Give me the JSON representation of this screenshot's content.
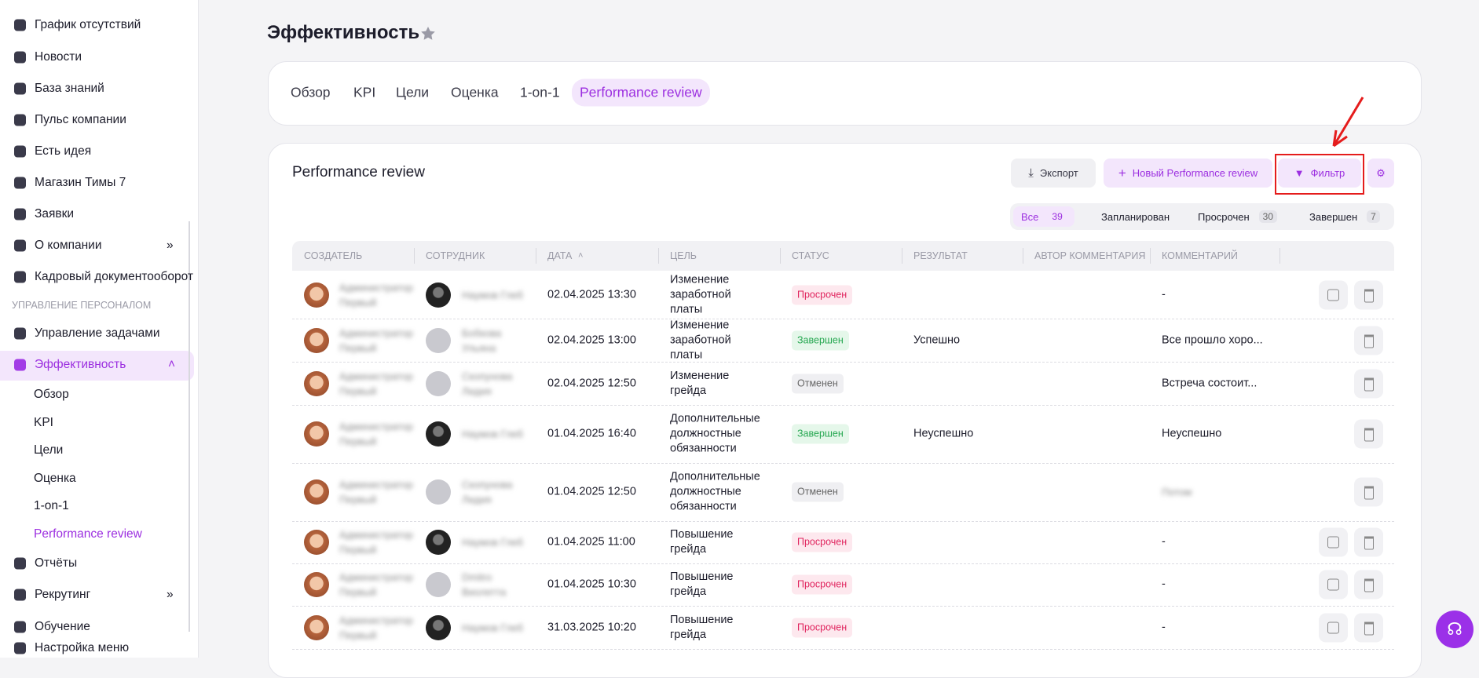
{
  "sidebar": {
    "items": [
      {
        "label": "График отсутствий"
      },
      {
        "label": "Новости"
      },
      {
        "label": "База знаний"
      },
      {
        "label": "Пульс компании"
      },
      {
        "label": "Есть идея"
      },
      {
        "label": "Магазин Тимы 7"
      },
      {
        "label": "Заявки"
      },
      {
        "label": "О компании",
        "expandable": true
      },
      {
        "label": "Кадровый документооборот"
      }
    ],
    "section": "УПРАВЛЕНИЕ ПЕРСОНАЛОМ",
    "items2": [
      {
        "label": "Управление задачами"
      },
      {
        "label": "Эффективность",
        "active": true,
        "expanded": true
      }
    ],
    "sub": [
      {
        "label": "Обзор"
      },
      {
        "label": "KPI"
      },
      {
        "label": "Цели"
      },
      {
        "label": "Оценка"
      },
      {
        "label": "1-on-1"
      },
      {
        "label": "Performance review",
        "active": true
      }
    ],
    "items3": [
      {
        "label": "Отчёты"
      },
      {
        "label": "Рекрутинг",
        "expandable": true
      },
      {
        "label": "Обучение"
      },
      {
        "label": "Настройка меню"
      }
    ]
  },
  "header": {
    "title": "Эффективность"
  },
  "tabs": [
    {
      "label": "Обзор"
    },
    {
      "label": "KPI"
    },
    {
      "label": "Цели"
    },
    {
      "label": "Оценка"
    },
    {
      "label": "1-on-1"
    },
    {
      "label": "Performance review",
      "active": true
    }
  ],
  "panel": {
    "title": "Performance review",
    "buttons": {
      "export": "Экспорт",
      "new": "Новый Performance review",
      "filter": "Фильтр"
    },
    "filters": [
      {
        "label": "Все",
        "count": 39,
        "active": true
      },
      {
        "label": "Запланирован"
      },
      {
        "label": "Просрочен",
        "count": 30
      },
      {
        "label": "Завершен",
        "count": 7
      }
    ]
  },
  "table": {
    "columns": [
      "СОЗДАТЕЛЬ",
      "СОТРУДНИК",
      "ДАТА",
      "ЦЕЛЬ",
      "СТАТУС",
      "РЕЗУЛЬТАТ",
      "АВТОР КОММЕНТАРИЯ",
      "КОММЕНТАРИЙ"
    ],
    "rows": [
      {
        "creator": "Администратор Первый",
        "employee": "Наумов Глеб",
        "employee_photo": true,
        "date": "02.04.2025 13:30",
        "goal": "Изменение заработной платы",
        "status": "Просрочен",
        "result": null,
        "comment": "-",
        "editable": true
      },
      {
        "creator": "Администратор Первый",
        "employee": "Бобкова Ульяна",
        "employee_photo": false,
        "date": "02.04.2025 13:00",
        "goal": "Изменение заработной платы",
        "status": "Завершен",
        "result": "Успешно",
        "comment": "Все прошло хоро...",
        "editable": false
      },
      {
        "creator": "Администратор Первый",
        "employee": "Скопунова Лидия",
        "employee_photo": false,
        "date": "02.04.2025 12:50",
        "goal": "Изменение грейда",
        "status": "Отменен",
        "result": null,
        "comment": "Встреча состоит...",
        "editable": false
      },
      {
        "creator": "Администратор Первый",
        "employee": "Наумов Глеб",
        "employee_photo": true,
        "date": "01.04.2025 16:40",
        "goal": "Дополнительные должностные обязанности",
        "status": "Завершен",
        "result": "Неуспешно",
        "comment": "Неуспешно",
        "editable": false
      },
      {
        "creator": "Администратор Первый",
        "employee": "Скопунова Лидия",
        "employee_photo": false,
        "date": "01.04.2025 12:50",
        "goal": "Дополнительные должностные обязанности",
        "status": "Отменен",
        "result": null,
        "comment": "Потом",
        "comment_blurred": true,
        "editable": false
      },
      {
        "creator": "Администратор Первый",
        "employee": "Наумов Глеб",
        "employee_photo": true,
        "date": "01.04.2025 11:00",
        "goal": "Повышение грейда",
        "status": "Просрочен",
        "result": null,
        "comment": "-",
        "editable": true
      },
      {
        "creator": "Администратор Первый",
        "employee": "Dmitro Виолетта",
        "employee_photo": false,
        "date": "01.04.2025 10:30",
        "goal": "Повышение грейда",
        "status": "Просрочен",
        "result": null,
        "comment": "-",
        "editable": true
      },
      {
        "creator": "Администратор Первый",
        "employee": "Наумов Глеб",
        "employee_photo": true,
        "date": "31.03.2025 10:20",
        "goal": "Повышение грейда",
        "status": "Просрочен",
        "result": null,
        "comment": "-",
        "editable": true
      }
    ]
  }
}
